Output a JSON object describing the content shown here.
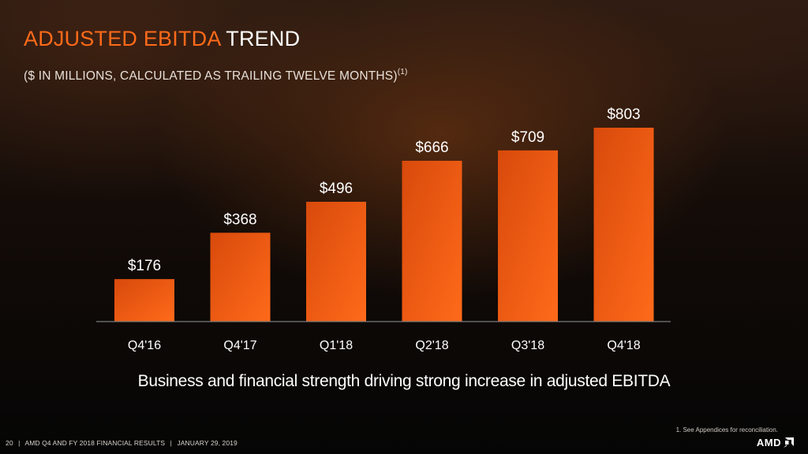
{
  "header": {
    "title_accent": "ADJUSTED EBITDA",
    "title_rest": "TREND",
    "subtitle": "($ IN MILLIONS, CALCULATED AS TRAILING TWELVE MONTHS)",
    "subtitle_sup": "(1)"
  },
  "caption": "Business and financial strength driving strong increase in adjusted EBITDA",
  "footnote": "1.     See Appendices for reconciliation.",
  "footer": {
    "page_number": "20",
    "separator": "|",
    "text": "AMD Q4 AND FY 2018 FINANCIAL RESULTS",
    "date": "JANUARY 29, 2019"
  },
  "logo": {
    "text": "AMD",
    "icon": "amd-arrow-icon"
  },
  "colors": {
    "accent": "#ff6a1a",
    "bar_top": "#f25a14",
    "bar_bottom": "#c8400a",
    "axis": "#7a7a7a"
  },
  "chart_data": {
    "type": "bar",
    "categories": [
      "Q4'16",
      "Q4'17",
      "Q1'18",
      "Q2'18",
      "Q3'18",
      "Q4'18"
    ],
    "values": [
      176,
      368,
      496,
      666,
      709,
      803
    ],
    "value_labels": [
      "$176",
      "$368",
      "$496",
      "$666",
      "$709",
      "$803"
    ],
    "ylim": [
      0,
      803
    ],
    "grid": false,
    "legend": "none"
  }
}
